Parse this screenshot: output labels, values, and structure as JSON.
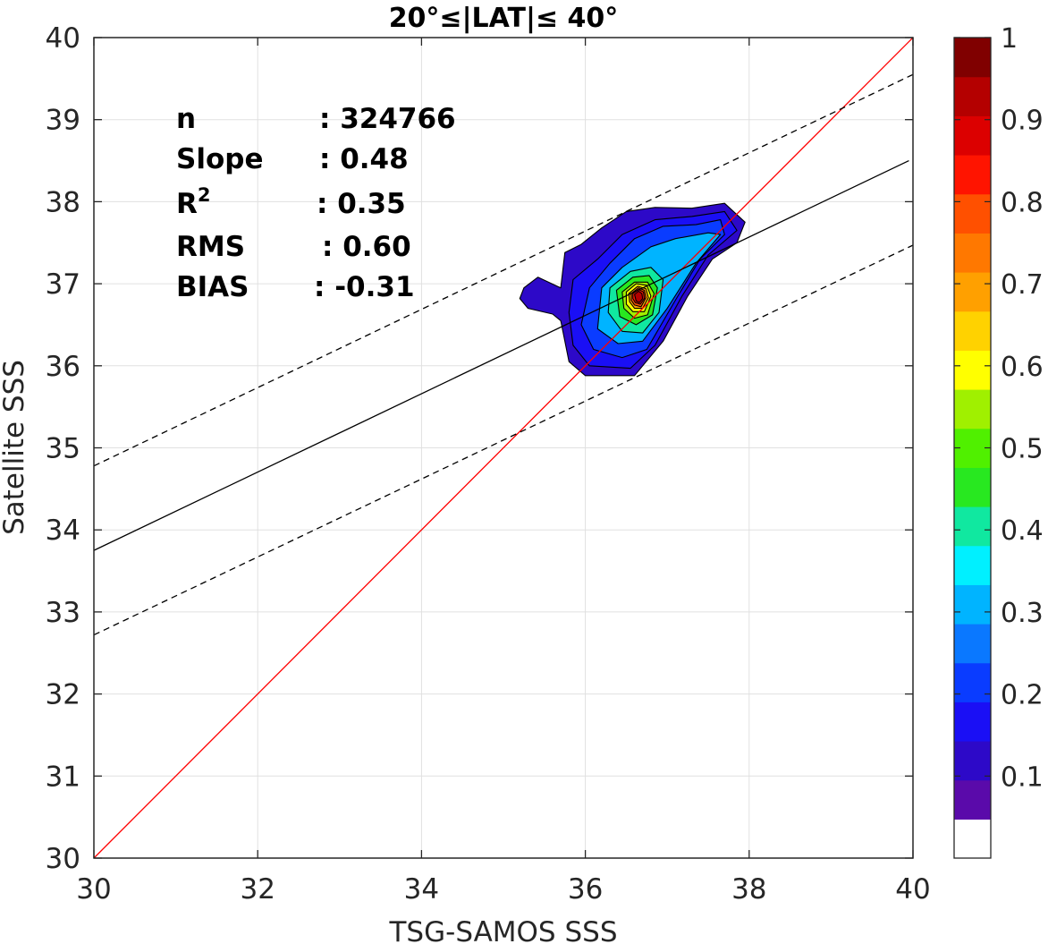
{
  "chart_data": {
    "type": "contour",
    "title": "20°≤|LAT|≤ 40°",
    "xlabel": "TSG-SAMOS SSS",
    "ylabel": "Satellite SSS",
    "xlim": [
      30,
      40
    ],
    "ylim": [
      30,
      40
    ],
    "xticks": [
      "30",
      "32",
      "34",
      "36",
      "38",
      "40"
    ],
    "yticks": [
      "30",
      "31",
      "32",
      "33",
      "34",
      "35",
      "36",
      "37",
      "38",
      "39",
      "40"
    ],
    "grid": true,
    "stats": [
      {
        "label": "n",
        "value": ": 324766"
      },
      {
        "label": "Slope",
        "value": ": 0.48"
      },
      {
        "label": "R",
        "sup": "2",
        "value": ": 0.35"
      },
      {
        "label": "RMS",
        "value": ": 0.60"
      },
      {
        "label": "BIAS",
        "value": ": -0.31"
      }
    ],
    "lines": [
      {
        "kind": "one-to-one",
        "color": "#ff0000",
        "style": "solid",
        "points": [
          [
            30,
            30
          ],
          [
            40,
            40
          ]
        ]
      },
      {
        "kind": "regression",
        "color": "#000000",
        "style": "solid",
        "points": [
          [
            30,
            33.75
          ],
          [
            39.95,
            38.5
          ]
        ]
      },
      {
        "kind": "upper-bound",
        "color": "#000000",
        "style": "dashed",
        "points": [
          [
            30,
            34.78
          ],
          [
            40,
            39.55
          ]
        ]
      },
      {
        "kind": "lower-bound",
        "color": "#000000",
        "style": "dashed",
        "points": [
          [
            30,
            32.72
          ],
          [
            40,
            37.47
          ]
        ]
      }
    ],
    "density_peak": {
      "x": 36.65,
      "y": 36.85
    },
    "contour_levels": [
      {
        "level": 0.05,
        "color": "#2d09c8",
        "points": [
          [
            35.25,
            36.95
          ],
          [
            35.42,
            37.08
          ],
          [
            35.7,
            36.95
          ],
          [
            35.75,
            37.38
          ],
          [
            35.95,
            37.48
          ],
          [
            36.2,
            37.68
          ],
          [
            36.5,
            37.88
          ],
          [
            36.85,
            37.93
          ],
          [
            37.3,
            37.92
          ],
          [
            37.7,
            37.98
          ],
          [
            37.95,
            37.75
          ],
          [
            37.85,
            37.5
          ],
          [
            37.55,
            37.3
          ],
          [
            37.25,
            36.85
          ],
          [
            36.95,
            36.3
          ],
          [
            36.6,
            35.88
          ],
          [
            36.0,
            35.88
          ],
          [
            35.8,
            36.05
          ],
          [
            35.7,
            36.55
          ],
          [
            35.6,
            36.63
          ],
          [
            35.3,
            36.7
          ],
          [
            35.2,
            36.82
          ]
        ]
      },
      {
        "level": 0.1,
        "color": "#1a0ff5",
        "points": [
          [
            35.85,
            37.05
          ],
          [
            36.15,
            37.3
          ],
          [
            36.45,
            37.6
          ],
          [
            36.85,
            37.78
          ],
          [
            37.3,
            37.82
          ],
          [
            37.7,
            37.88
          ],
          [
            37.85,
            37.65
          ],
          [
            37.5,
            37.35
          ],
          [
            37.18,
            36.85
          ],
          [
            36.85,
            36.25
          ],
          [
            36.55,
            35.97
          ],
          [
            36.05,
            36.0
          ],
          [
            35.85,
            36.25
          ],
          [
            35.8,
            36.65
          ]
        ]
      },
      {
        "level": 0.2,
        "color": "#0a3cff",
        "points": [
          [
            36.05,
            36.95
          ],
          [
            36.3,
            37.25
          ],
          [
            36.6,
            37.55
          ],
          [
            36.95,
            37.7
          ],
          [
            37.35,
            37.72
          ],
          [
            37.65,
            37.78
          ],
          [
            37.7,
            37.6
          ],
          [
            37.4,
            37.3
          ],
          [
            37.1,
            36.8
          ],
          [
            36.75,
            36.2
          ],
          [
            36.45,
            36.1
          ],
          [
            36.1,
            36.2
          ],
          [
            35.95,
            36.5
          ]
        ]
      },
      {
        "level": 0.3,
        "color": "#00b4ff",
        "points": [
          [
            36.2,
            36.95
          ],
          [
            36.45,
            37.2
          ],
          [
            36.8,
            37.45
          ],
          [
            37.1,
            37.55
          ],
          [
            37.5,
            37.62
          ],
          [
            37.65,
            37.6
          ],
          [
            37.35,
            37.25
          ],
          [
            37.0,
            36.7
          ],
          [
            36.7,
            36.3
          ],
          [
            36.4,
            36.27
          ],
          [
            36.15,
            36.45
          ]
        ]
      },
      {
        "level": 0.45,
        "color": "#10e8a0",
        "points": [
          [
            36.3,
            36.95
          ],
          [
            36.55,
            37.15
          ],
          [
            36.8,
            37.2
          ],
          [
            36.95,
            37.05
          ],
          [
            36.9,
            36.65
          ],
          [
            36.7,
            36.4
          ],
          [
            36.45,
            36.42
          ],
          [
            36.28,
            36.65
          ]
        ]
      },
      {
        "level": 0.55,
        "color": "#28e820",
        "points": [
          [
            36.38,
            36.92
          ],
          [
            36.58,
            37.08
          ],
          [
            36.78,
            37.1
          ],
          [
            36.88,
            36.95
          ],
          [
            36.82,
            36.62
          ],
          [
            36.62,
            36.5
          ],
          [
            36.42,
            36.6
          ]
        ]
      },
      {
        "level": 0.62,
        "color": "#a0f000",
        "points": [
          [
            36.45,
            36.9
          ],
          [
            36.6,
            37.02
          ],
          [
            36.76,
            37.02
          ],
          [
            36.84,
            36.88
          ],
          [
            36.76,
            36.62
          ],
          [
            36.6,
            36.58
          ],
          [
            36.47,
            36.7
          ]
        ]
      },
      {
        "level": 0.68,
        "color": "#ffff00",
        "points": [
          [
            36.5,
            36.9
          ],
          [
            36.62,
            37.0
          ],
          [
            36.75,
            36.98
          ],
          [
            36.8,
            36.85
          ],
          [
            36.72,
            36.66
          ],
          [
            36.58,
            36.66
          ],
          [
            36.5,
            36.75
          ]
        ]
      },
      {
        "level": 0.75,
        "color": "#ffa000",
        "points": [
          [
            36.53,
            36.88
          ],
          [
            36.64,
            36.97
          ],
          [
            36.74,
            36.94
          ],
          [
            36.77,
            36.83
          ],
          [
            36.7,
            36.7
          ],
          [
            36.6,
            36.7
          ],
          [
            36.54,
            36.78
          ]
        ]
      },
      {
        "level": 0.82,
        "color": "#ff5000",
        "points": [
          [
            36.56,
            36.88
          ],
          [
            36.65,
            36.95
          ],
          [
            36.72,
            36.92
          ],
          [
            36.74,
            36.83
          ],
          [
            36.68,
            36.72
          ],
          [
            36.6,
            36.74
          ],
          [
            36.56,
            36.8
          ]
        ]
      },
      {
        "level": 0.9,
        "color": "#ff1400",
        "points": [
          [
            36.58,
            36.88
          ],
          [
            36.65,
            36.93
          ],
          [
            36.71,
            36.9
          ],
          [
            36.72,
            36.82
          ],
          [
            36.67,
            36.75
          ],
          [
            36.61,
            36.77
          ],
          [
            36.58,
            36.82
          ]
        ]
      },
      {
        "level": 0.95,
        "color": "#b40000",
        "points": [
          [
            36.6,
            36.87
          ],
          [
            36.65,
            36.91
          ],
          [
            36.69,
            36.88
          ],
          [
            36.7,
            36.82
          ],
          [
            36.66,
            36.77
          ],
          [
            36.62,
            36.79
          ]
        ]
      }
    ],
    "colorbar": {
      "ticks": [
        "0.1",
        "0.2",
        "0.3",
        "0.4",
        "0.5",
        "0.6",
        "0.7",
        "0.8",
        "0.9",
        "1"
      ],
      "tick_values": [
        0.1,
        0.2,
        0.3,
        0.4,
        0.5,
        0.6,
        0.7,
        0.8,
        0.9,
        1.0
      ],
      "colors": [
        "#ffffff",
        "#5a0aaa",
        "#2d09c8",
        "#1a0ff5",
        "#0a3cff",
        "#0a78ff",
        "#00b4ff",
        "#00f0ff",
        "#10e8a0",
        "#28e820",
        "#50f000",
        "#a0f000",
        "#ffff00",
        "#ffd200",
        "#ffa000",
        "#ff7800",
        "#ff5000",
        "#ff1400",
        "#dc0000",
        "#b40000",
        "#800000"
      ]
    }
  }
}
